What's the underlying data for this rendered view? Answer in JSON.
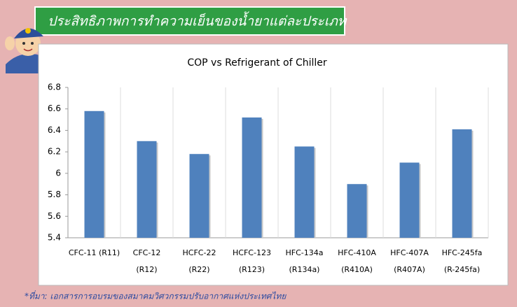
{
  "header": {
    "title": "ประสิทธิภาพการทำความเย็นของน้ำยาแต่ละประเภท"
  },
  "chart_data": {
    "type": "bar",
    "title": "COP vs Refrigerant of Chiller",
    "categories": [
      "CFC-11 (R11)",
      "CFC-12\n(R12)",
      "HCFC-22\n(R22)",
      "HCFC-123\n(R123)",
      "HFC-134a\n(R134a)",
      "HFC-410A\n(R410A)",
      "HFC-407A\n(R407A)",
      "HFC-245fa\n(R-245fa)"
    ],
    "values": [
      6.58,
      6.3,
      6.18,
      6.52,
      6.25,
      5.9,
      6.1,
      6.41
    ],
    "color": "#4f81bd",
    "ylim": [
      5.4,
      6.8
    ],
    "yticks": [
      5.4,
      5.6,
      5.8,
      6,
      6.2,
      6.4,
      6.6,
      6.8
    ]
  },
  "footer": {
    "source": "*ที่มา: เอกสารการอบรมของสมาคมวิศวกรรมปรับอากาศแห่งประเทศไทย"
  }
}
